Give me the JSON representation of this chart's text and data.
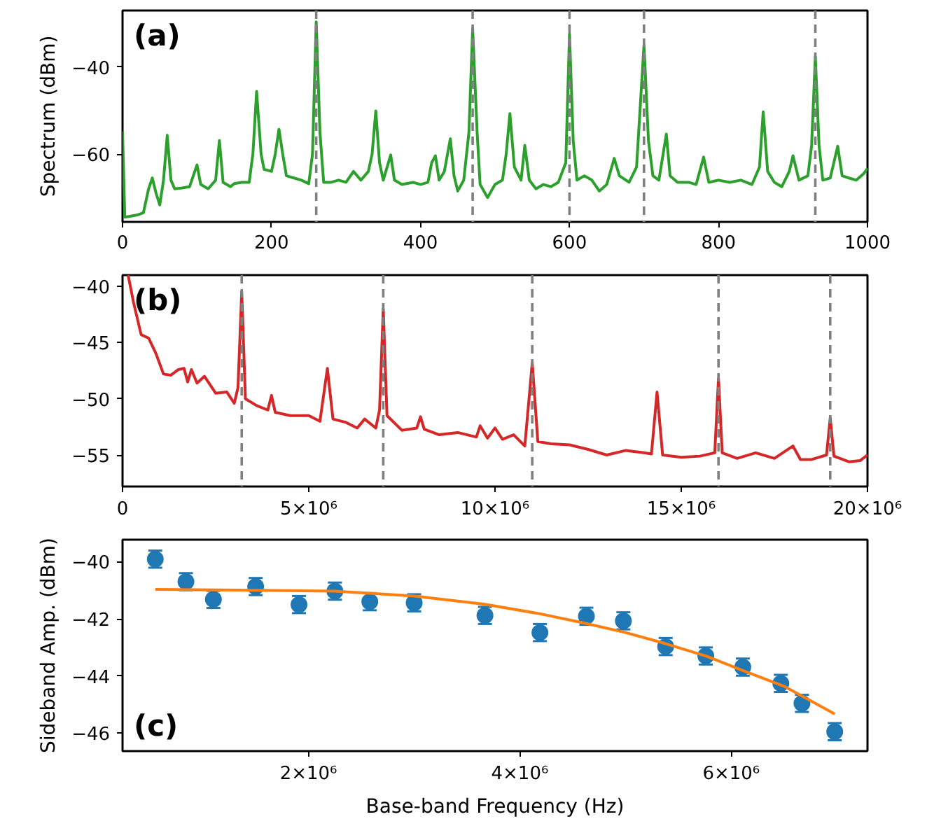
{
  "chart_data": [
    {
      "type": "line",
      "ylabel": "Spectrum (dBm)",
      "annotations": [
        "(a)"
      ],
      "xlim": [
        0,
        1000
      ],
      "xticks": [
        0,
        200,
        400,
        600,
        800,
        1000
      ],
      "ylim": [
        -75.6,
        -27
      ],
      "yticks": [
        -40,
        -60
      ],
      "grid": false,
      "series": [
        {
          "color": "#2ca02c",
          "x": [
            0,
            3,
            10,
            20,
            28,
            35,
            40,
            45,
            50,
            55,
            60,
            65,
            70,
            80,
            90,
            100,
            105,
            115,
            125,
            130,
            135,
            145,
            150,
            160,
            170,
            175,
            180,
            186,
            190,
            200,
            205,
            210,
            215,
            220,
            230,
            240,
            250,
            255,
            260,
            265,
            270,
            280,
            290,
            300,
            310,
            320,
            330,
            335,
            340,
            345,
            350,
            360,
            365,
            375,
            390,
            400,
            410,
            415,
            420,
            425,
            432,
            440,
            445,
            450,
            458,
            465,
            470,
            476,
            480,
            490,
            500,
            510,
            515,
            520,
            526,
            535,
            540,
            546,
            555,
            565,
            575,
            585,
            595,
            600,
            605,
            610,
            620,
            630,
            640,
            650,
            660,
            667,
            680,
            690,
            700,
            706,
            712,
            720,
            730,
            735,
            745,
            760,
            770,
            780,
            787,
            800,
            815,
            830,
            845,
            855,
            860,
            866,
            875,
            885,
            895,
            900,
            908,
            920,
            925,
            930,
            935,
            940,
            950,
            960,
            966,
            975,
            985,
            995,
            1000
          ],
          "values": [
            -54.8,
            -74.5,
            -74.3,
            -74.0,
            -73.5,
            -68,
            -65.5,
            -69,
            -71.7,
            -66,
            -55.7,
            -66,
            -68,
            -67.8,
            -67.5,
            -62.5,
            -67,
            -68,
            -66,
            -56.9,
            -66.5,
            -67.5,
            -66.8,
            -66.5,
            -66.5,
            -60,
            -45.6,
            -60,
            -63.5,
            -64,
            -60,
            -54.3,
            -60,
            -65,
            -65.5,
            -66,
            -66.8,
            -60,
            -29.6,
            -55,
            -66.5,
            -66.5,
            -66,
            -66.5,
            -64,
            -66,
            -64,
            -60,
            -50.1,
            -62,
            -66,
            -60.2,
            -66,
            -67,
            -66.5,
            -67,
            -66.5,
            -62,
            -60.4,
            -66,
            -64,
            -56.5,
            -65,
            -68.5,
            -66,
            -55,
            -31.2,
            -55,
            -67,
            -70,
            -67,
            -66,
            -60,
            -50.7,
            -63,
            -66,
            -58,
            -66,
            -68,
            -67,
            -67.5,
            -66.5,
            -62,
            -32.4,
            -57,
            -66,
            -65,
            -66,
            -68.5,
            -67,
            -61,
            -65,
            -66.5,
            -63,
            -34.9,
            -57,
            -65,
            -66,
            -55.4,
            -65,
            -66.5,
            -66.5,
            -67,
            -60.7,
            -66.5,
            -66,
            -66.5,
            -66,
            -67,
            -63,
            -50.3,
            -64,
            -66.5,
            -67.5,
            -64,
            -60.4,
            -66,
            -65,
            -58,
            -37.6,
            -58,
            -66,
            -65.5,
            -58.2,
            -65,
            -65.5,
            -66,
            -64.5,
            -63.3
          ]
        }
      ],
      "ref_lines": [
        {
          "axis": "x",
          "value": 260,
          "color": "#808080",
          "line_style": "dashed"
        },
        {
          "axis": "x",
          "value": 470,
          "color": "#808080",
          "line_style": "dashed"
        },
        {
          "axis": "x",
          "value": 600,
          "color": "#808080",
          "line_style": "dashed"
        },
        {
          "axis": "x",
          "value": 700,
          "color": "#808080",
          "line_style": "dashed"
        },
        {
          "axis": "x",
          "value": 930,
          "color": "#808080",
          "line_style": "dashed"
        }
      ]
    },
    {
      "type": "line",
      "annotations": [
        "(b)"
      ],
      "xlim": [
        0,
        20000000
      ],
      "xticks": [
        0,
        {
          "value": 5000000,
          "label": "5×10⁶"
        },
        {
          "value": 10000000,
          "label": "10×10⁶"
        },
        {
          "value": 15000000,
          "label": "15×10⁶"
        },
        {
          "value": 20000000,
          "label": "20×10⁶"
        }
      ],
      "ylim": [
        -57.8,
        -39
      ],
      "yticks": [
        -40,
        -45,
        -50,
        -55
      ],
      "grid": false,
      "series": [
        {
          "color": "#d62728",
          "x": [
            150000,
            300000,
            500000,
            700000,
            900000,
            1100000,
            1300000,
            1500000,
            1650000,
            1750000,
            1850000,
            2000000,
            2200000,
            2500000,
            2800000,
            3000000,
            3100000,
            3200000,
            3300000,
            3600000,
            3900000,
            4000000,
            4100000,
            4500000,
            5000000,
            5300000,
            5500000,
            5650000,
            6000000,
            6300000,
            6500000,
            6800000,
            6900000,
            7000000,
            7100000,
            7500000,
            7900000,
            8000000,
            8100000,
            8500000,
            9000000,
            9500000,
            9600000,
            9800000,
            10000000,
            10200000,
            10500000,
            10800000,
            11000000,
            11150000,
            11500000,
            12000000,
            12500000,
            13000000,
            13500000,
            14000000,
            14200000,
            14350000,
            14500000,
            15000000,
            15500000,
            15900000,
            16000000,
            16100000,
            16500000,
            17000000,
            17500000,
            18000000,
            18200000,
            18500000,
            18900000,
            19000000,
            19100000,
            19500000,
            19800000,
            20000000
          ],
          "values": [
            -39.0,
            -41.5,
            -44.3,
            -44.6,
            -46.0,
            -47.8,
            -47.9,
            -47.4,
            -47.3,
            -48.5,
            -47.4,
            -48.6,
            -48.0,
            -49.5,
            -49.4,
            -50.4,
            -49.0,
            -40.5,
            -50.0,
            -50.6,
            -51.0,
            -49.7,
            -51.2,
            -51.5,
            -51.5,
            -52.0,
            -47.3,
            -51.8,
            -52.1,
            -52.6,
            -51.8,
            -52.6,
            -51.0,
            -42.0,
            -51.5,
            -52.8,
            -52.6,
            -51.6,
            -52.7,
            -53.2,
            -53.0,
            -53.4,
            -52.4,
            -53.5,
            -52.6,
            -53.6,
            -53.2,
            -54.2,
            -46.8,
            -53.8,
            -54.0,
            -54.1,
            -54.5,
            -55.0,
            -54.6,
            -54.8,
            -54.9,
            -49.4,
            -55.0,
            -55.2,
            -55.1,
            -54.8,
            -48.2,
            -54.8,
            -55.3,
            -54.8,
            -55.3,
            -54.2,
            -55.4,
            -55.4,
            -55.0,
            -51.7,
            -55.1,
            -55.6,
            -55.5,
            -55.0
          ]
        }
      ],
      "ref_lines": [
        {
          "axis": "x",
          "value": 3200000,
          "color": "#808080",
          "line_style": "dashed"
        },
        {
          "axis": "x",
          "value": 7000000,
          "color": "#808080",
          "line_style": "dashed"
        },
        {
          "axis": "x",
          "value": 11000000,
          "color": "#808080",
          "line_style": "dashed"
        },
        {
          "axis": "x",
          "value": 16000000,
          "color": "#808080",
          "line_style": "dashed"
        },
        {
          "axis": "x",
          "value": 19000000,
          "color": "#808080",
          "line_style": "dashed"
        }
      ]
    },
    {
      "type": "scatter",
      "xlabel": "Base-band Frequency (Hz)",
      "ylabel": "Sideband Amp. (dBm)",
      "annotations": [
        "(c)"
      ],
      "xlim": [
        240000,
        7290000
      ],
      "xticks": [
        {
          "value": 2000000,
          "label": "2×10⁶"
        },
        {
          "value": 4000000,
          "label": "4×10⁶"
        },
        {
          "value": 6000000,
          "label": "6×10⁶"
        }
      ],
      "ylim": [
        -46.63,
        -39.23
      ],
      "yticks": [
        -40,
        -42,
        -44,
        -46
      ],
      "grid": false,
      "series": [
        {
          "color": "#1f77b4",
          "marker": "circle",
          "x": [
            550000,
            840000,
            1100000,
            1500000,
            1910000,
            2250000,
            2580000,
            3000000,
            3670000,
            4190000,
            4630000,
            4980000,
            5380000,
            5760000,
            6110000,
            6470000,
            6670000,
            6980000
          ],
          "values": [
            -39.91,
            -40.7,
            -41.32,
            -40.87,
            -41.5,
            -41.03,
            -41.4,
            -41.44,
            -41.88,
            -42.48,
            -41.91,
            -42.07,
            -42.97,
            -43.3,
            -43.69,
            -44.26,
            -44.96,
            -45.95
          ],
          "errors": [
            0.3,
            0.3,
            0.3,
            0.3,
            0.3,
            0.3,
            0.3,
            0.3,
            0.3,
            0.3,
            0.3,
            0.3,
            0.3,
            0.3,
            0.3,
            0.3,
            0.3,
            0.3
          ]
        },
        {
          "type": "line",
          "color": "#ff7f0e",
          "x": [
            550000,
            1500000,
            2250000,
            3000000,
            3670000,
            4200000,
            4600000,
            5000000,
            5380000,
            5760000,
            6110000,
            6500000,
            6980000
          ],
          "values": [
            -40.97,
            -41.0,
            -41.03,
            -41.2,
            -41.49,
            -41.83,
            -42.14,
            -42.48,
            -42.87,
            -43.3,
            -43.81,
            -44.36,
            -45.33
          ]
        }
      ]
    }
  ]
}
